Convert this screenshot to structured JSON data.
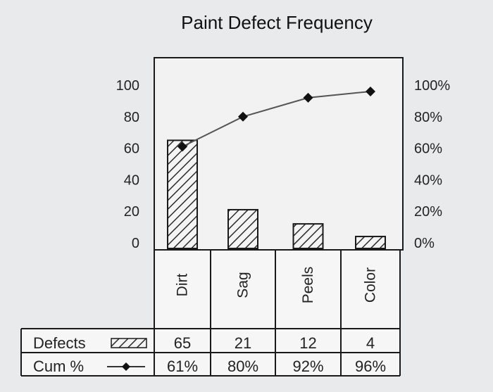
{
  "chart_data": {
    "type": "bar",
    "title": "Paint Defect Frequency",
    "categories": [
      "Dirt",
      "Sag",
      "Peels",
      "Color"
    ],
    "series": [
      {
        "name": "Defects",
        "kind": "bar",
        "axis": "left",
        "pattern": "diagonal-hatch",
        "values": [
          65,
          21,
          12,
          4
        ]
      },
      {
        "name": "Cum %",
        "kind": "line",
        "axis": "right",
        "marker": "diamond",
        "values": [
          61,
          80,
          92,
          96
        ]
      }
    ],
    "left_axis": {
      "ticks": [
        "100",
        "80",
        "60",
        "40",
        "20",
        "0"
      ],
      "ylim": [
        0,
        100
      ]
    },
    "right_axis": {
      "ticks": [
        "100%",
        "80%",
        "60%",
        "40%",
        "20%",
        "0%"
      ],
      "ylim": [
        0,
        100
      ]
    },
    "table": {
      "rows": [
        {
          "label": "Defects",
          "values": [
            "65",
            "21",
            "12",
            "4"
          ]
        },
        {
          "label": "Cum %",
          "values": [
            "61%",
            "80%",
            "92%",
            "96%"
          ]
        }
      ]
    },
    "legend": "table-bottom",
    "grid": false
  },
  "colors": {
    "background": "#e9eaec",
    "plot_bg": "#f2f2f3",
    "ink": "#1a1a1a",
    "line": "#555555"
  }
}
